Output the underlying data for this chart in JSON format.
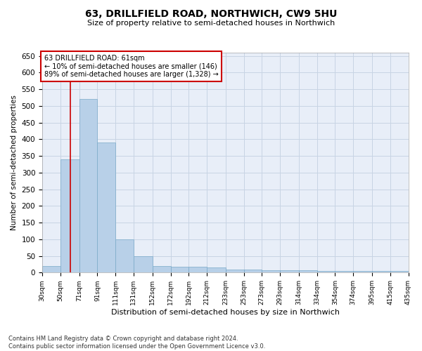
{
  "title": "63, DRILLFIELD ROAD, NORTHWICH, CW9 5HU",
  "subtitle": "Size of property relative to semi-detached houses in Northwich",
  "xlabel": "Distribution of semi-detached houses by size in Northwich",
  "ylabel": "Number of semi-detached properties",
  "property_size": 61,
  "property_label": "63 DRILLFIELD ROAD: 61sqm",
  "annotation_line1": "← 10% of semi-detached houses are smaller (146)",
  "annotation_line2": "89% of semi-detached houses are larger (1,328) →",
  "footer_line1": "Contains HM Land Registry data © Crown copyright and database right 2024.",
  "footer_line2": "Contains public sector information licensed under the Open Government Licence v3.0.",
  "bar_color": "#b8d0e8",
  "bar_edge_color": "#7aaac8",
  "red_line_color": "#cc0000",
  "annotation_box_color": "#cc0000",
  "grid_color": "#c8d4e4",
  "background_color": "#e8eef8",
  "bin_edges": [
    30,
    50,
    71,
    91,
    111,
    131,
    152,
    172,
    192,
    212,
    233,
    253,
    273,
    293,
    314,
    334,
    354,
    374,
    395,
    415,
    435
  ],
  "bin_labels": [
    "30sqm",
    "50sqm",
    "71sqm",
    "91sqm",
    "111sqm",
    "131sqm",
    "152sqm",
    "172sqm",
    "192sqm",
    "212sqm",
    "233sqm",
    "253sqm",
    "273sqm",
    "293sqm",
    "314sqm",
    "334sqm",
    "354sqm",
    "374sqm",
    "395sqm",
    "415sqm",
    "435sqm"
  ],
  "counts": [
    20,
    340,
    520,
    390,
    100,
    50,
    20,
    18,
    18,
    16,
    10,
    10,
    8,
    8,
    8,
    5,
    5,
    5,
    5,
    5
  ],
  "ylim": [
    0,
    660
  ],
  "yticks": [
    0,
    50,
    100,
    150,
    200,
    250,
    300,
    350,
    400,
    450,
    500,
    550,
    600,
    650
  ]
}
